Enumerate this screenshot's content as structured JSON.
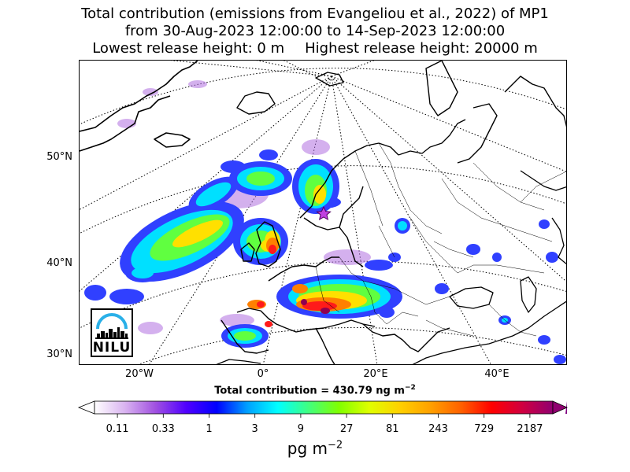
{
  "title": {
    "line1": "Total contribution (emissions from Evangeliou et al., 2022) of MP1",
    "line2": "from 30-Aug-2023 12:00:00 to 14-Sep-2023 12:00:00",
    "line3_left": "Lowest release height: 0 m",
    "line3_right": "Highest release height: 20000 m"
  },
  "map": {
    "lat_labels": [
      "50°N",
      "40°N",
      "30°N"
    ],
    "lon_labels": [
      "20°W",
      "0°",
      "20°E",
      "40°E"
    ],
    "source_marker": "star-icon"
  },
  "total": {
    "prefix": "Total contribution = 430.79 ng m",
    "exponent": "−2"
  },
  "colorbar": {
    "ticks": [
      "0.11",
      "0.33",
      "1",
      "3",
      "9",
      "27",
      "81",
      "243",
      "729",
      "2187"
    ],
    "units_base": "pg m",
    "units_exponent": "−2",
    "colors": [
      "#ffffff",
      "#d9b3f0",
      "#a050e0",
      "#5000ff",
      "#0000ff",
      "#00a0ff",
      "#00ffff",
      "#40ff80",
      "#80ff00",
      "#e0ff00",
      "#ffd000",
      "#ffa000",
      "#ff6000",
      "#ff0000",
      "#d00040",
      "#900070"
    ]
  },
  "logo": {
    "text": "NILU"
  }
}
